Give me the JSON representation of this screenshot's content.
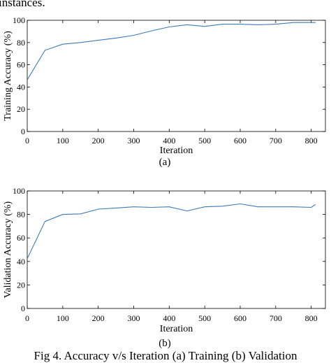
{
  "page": {
    "top_text": "instances.",
    "caption": "Fig 4. Accuracy v/s Iteration (a) Training (b) Validation"
  },
  "chart_data": [
    {
      "type": "line",
      "sublabel": "(a)",
      "xlabel": "Iteration",
      "ylabel": "Training Accuracy (%)",
      "xlim": [
        0,
        840
      ],
      "ylim": [
        0,
        100
      ],
      "xticks": [
        0,
        100,
        200,
        300,
        400,
        500,
        600,
        700,
        800
      ],
      "yticks": [
        0,
        20,
        40,
        60,
        80,
        100
      ],
      "grid": false,
      "line_color": "#3d7ab8",
      "series": [
        {
          "x": [
            1,
            50,
            100,
            150,
            200,
            250,
            300,
            350,
            400,
            450,
            500,
            550,
            600,
            650,
            700,
            750,
            800,
            812
          ],
          "y": [
            47,
            73,
            78.5,
            80,
            82,
            84,
            86.5,
            90.5,
            94,
            96,
            94.5,
            96.5,
            96.5,
            96,
            96.5,
            98,
            98,
            98
          ]
        }
      ]
    },
    {
      "type": "line",
      "sublabel": "(b)",
      "xlabel": "Iteration",
      "ylabel": "Validation Accuracy (%)",
      "xlim": [
        0,
        840
      ],
      "ylim": [
        0,
        100
      ],
      "xticks": [
        0,
        100,
        200,
        300,
        400,
        500,
        600,
        700,
        800
      ],
      "yticks": [
        0,
        20,
        40,
        60,
        80,
        100
      ],
      "grid": false,
      "line_color": "#3d7ab8",
      "series": [
        {
          "x": [
            1,
            50,
            100,
            150,
            200,
            250,
            300,
            350,
            400,
            450,
            500,
            550,
            600,
            650,
            700,
            750,
            800,
            812
          ],
          "y": [
            43,
            74,
            80,
            80.5,
            84.5,
            85.5,
            86.5,
            86,
            86.5,
            83,
            86.5,
            87,
            89,
            86.5,
            86.5,
            86.5,
            86,
            88.5
          ]
        }
      ]
    }
  ]
}
